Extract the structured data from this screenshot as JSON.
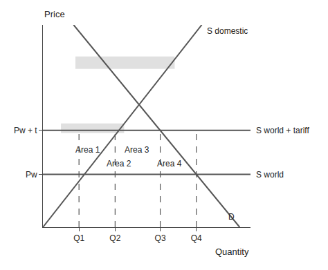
{
  "chart_data": {
    "type": "line",
    "xlabel": "Quantity",
    "ylabel": "Price",
    "xlim": [
      0,
      11.5
    ],
    "ylim": [
      0,
      11.5
    ],
    "xticks": [
      {
        "value": 2.0,
        "label": "Q1"
      },
      {
        "value": 4.0,
        "label": "Q2"
      },
      {
        "value": 6.5,
        "label": "Q3"
      },
      {
        "value": 8.5,
        "label": "Q4"
      }
    ],
    "yticks": [
      {
        "value": 3.0,
        "label": "Pw"
      },
      {
        "value": 5.5,
        "label": "Pw + t"
      }
    ],
    "grid": false,
    "series": [
      {
        "name": "S domestic",
        "color": "#555555",
        "line_style": "solid",
        "x": [
          0,
          8.8
        ],
        "values": [
          0,
          11.5
        ]
      },
      {
        "name": "D",
        "color": "#555555",
        "line_style": "solid",
        "x": [
          1.7,
          10.9
        ],
        "values": [
          11.5,
          0
        ]
      },
      {
        "name": "S world + tariff",
        "color": "#555555",
        "line_style": "solid",
        "x": [
          0,
          11.5
        ],
        "values": [
          5.5,
          5.5
        ]
      },
      {
        "name": "S world",
        "color": "#555555",
        "line_style": "solid",
        "x": [
          0,
          11.5
        ],
        "values": [
          3.0,
          3.0
        ]
      },
      {
        "color": "#555555",
        "line_style": "dashed",
        "x": [
          2.0,
          2.0
        ],
        "values": [
          0,
          5.5
        ]
      },
      {
        "color": "#555555",
        "line_style": "dashed",
        "x": [
          4.0,
          4.0
        ],
        "values": [
          0,
          5.5
        ]
      },
      {
        "color": "#555555",
        "line_style": "dashed",
        "x": [
          6.5,
          6.5
        ],
        "values": [
          0,
          5.5
        ]
      },
      {
        "color": "#555555",
        "line_style": "dashed",
        "x": [
          8.5,
          8.5
        ],
        "values": [
          0,
          5.5
        ]
      }
    ],
    "rectangles": [
      {
        "x": 1.8,
        "y": 9.0,
        "width": 5.5,
        "height": 0.7,
        "color": "#e0e0e0"
      },
      {
        "x": 1.0,
        "y": 5.35,
        "width": 3.5,
        "height": 0.55,
        "color": "#e0e0e0"
      }
    ],
    "annotations": [
      {
        "text": "Area 1",
        "x": 2.5,
        "y": 4.4
      },
      {
        "text": "Area 2",
        "x": 4.2,
        "y": 3.6
      },
      {
        "text": "Area 3",
        "x": 5.2,
        "y": 4.4
      },
      {
        "text": "Area 4",
        "x": 7.0,
        "y": 3.6
      }
    ]
  }
}
